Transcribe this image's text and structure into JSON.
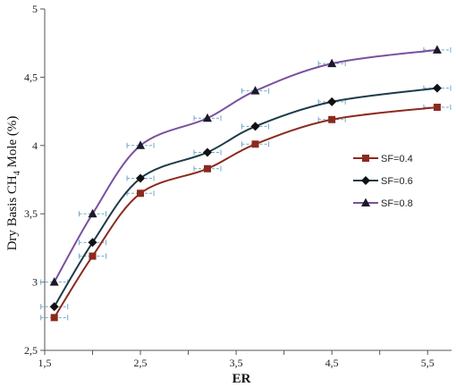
{
  "chart_data": {
    "type": "line",
    "xlabel": "ER",
    "ylabel": "Dry Basis CH",
    "ylabel_sub": "4",
    "ylabel_suffix": " Mole (%)",
    "xlim": [
      1.5,
      5.75
    ],
    "ylim": [
      2.5,
      5
    ],
    "x_ticks": [
      1.5,
      2.5,
      3.5,
      4.5,
      5.5
    ],
    "x_tick_labels": [
      "1,5",
      "2,5",
      "3,5",
      "4,5",
      "5,5"
    ],
    "y_ticks": [
      2.5,
      3,
      3.5,
      4,
      4.5,
      5
    ],
    "y_tick_labels": [
      "2,5",
      "3",
      "3,5",
      "4",
      "4,5",
      "5"
    ],
    "grid": false,
    "error_bars": "horizontal",
    "legend_position": "right",
    "x": [
      1.6,
      2.0,
      2.5,
      3.2,
      3.7,
      4.5,
      5.6
    ],
    "series": [
      {
        "name": "SF=0.4",
        "marker": "square",
        "color": "#8b2a1e",
        "values": [
          2.74,
          3.19,
          3.65,
          3.83,
          4.01,
          4.19,
          4.28
        ]
      },
      {
        "name": "SF=0.6",
        "marker": "diamond",
        "color": "#1d3b47",
        "values": [
          2.82,
          3.29,
          3.76,
          3.95,
          4.14,
          4.32,
          4.42
        ]
      },
      {
        "name": "SF=0.8",
        "marker": "triangle",
        "color": "#7a519e",
        "values": [
          3.0,
          3.5,
          4.0,
          4.2,
          4.4,
          4.6,
          4.7
        ]
      }
    ]
  }
}
